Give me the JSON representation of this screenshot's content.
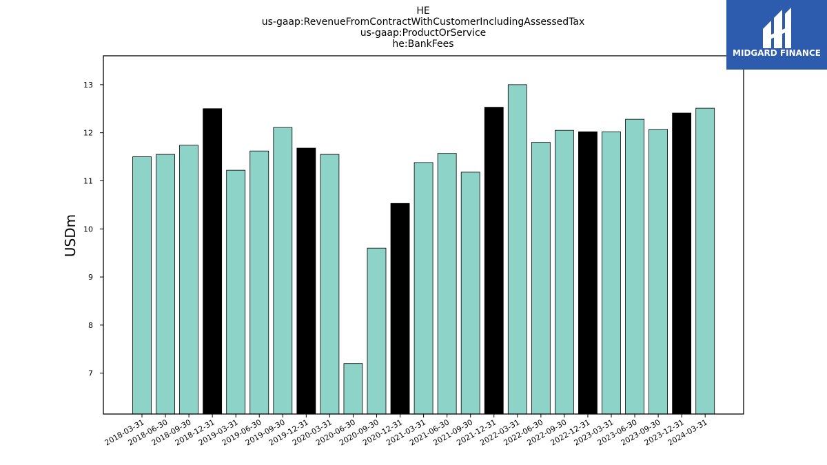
{
  "chart_data": {
    "type": "bar",
    "title_lines": [
      "HE",
      "us-gaap:RevenueFromContractWithCustomerIncludingAssessedTax",
      "us-gaap:ProductOrService",
      "he:BankFees"
    ],
    "xlabel": "",
    "ylabel": "USDm",
    "ylim": [
      6.15,
      13.6
    ],
    "yticks": [
      7,
      8,
      9,
      10,
      11,
      12,
      13
    ],
    "grid": false,
    "categories": [
      "2018-03-31",
      "2018-06-30",
      "2018-09-30",
      "2018-12-31",
      "2019-03-31",
      "2019-06-30",
      "2019-09-30",
      "2019-12-31",
      "2020-03-31",
      "2020-06-30",
      "2020-09-30",
      "2020-12-31",
      "2021-03-31",
      "2021-06-30",
      "2021-09-30",
      "2021-12-31",
      "2022-03-31",
      "2022-06-30",
      "2022-09-30",
      "2022-12-31",
      "2023-03-31",
      "2023-06-30",
      "2023-09-30",
      "2023-12-31",
      "2024-03-31"
    ],
    "values": [
      11.5,
      11.55,
      11.74,
      12.5,
      11.22,
      11.62,
      12.11,
      11.68,
      11.55,
      7.2,
      9.6,
      10.53,
      11.38,
      11.57,
      11.18,
      12.53,
      13.0,
      11.8,
      12.05,
      12.02,
      12.02,
      12.28,
      12.07,
      12.41,
      12.51
    ],
    "bar_colors": {
      "quarter": "#8dd3c7",
      "year_end": "#000000",
      "edge": "#000000"
    }
  },
  "logo": {
    "text": "MIDGARD FINANCE",
    "background": "#2d5bad"
  }
}
